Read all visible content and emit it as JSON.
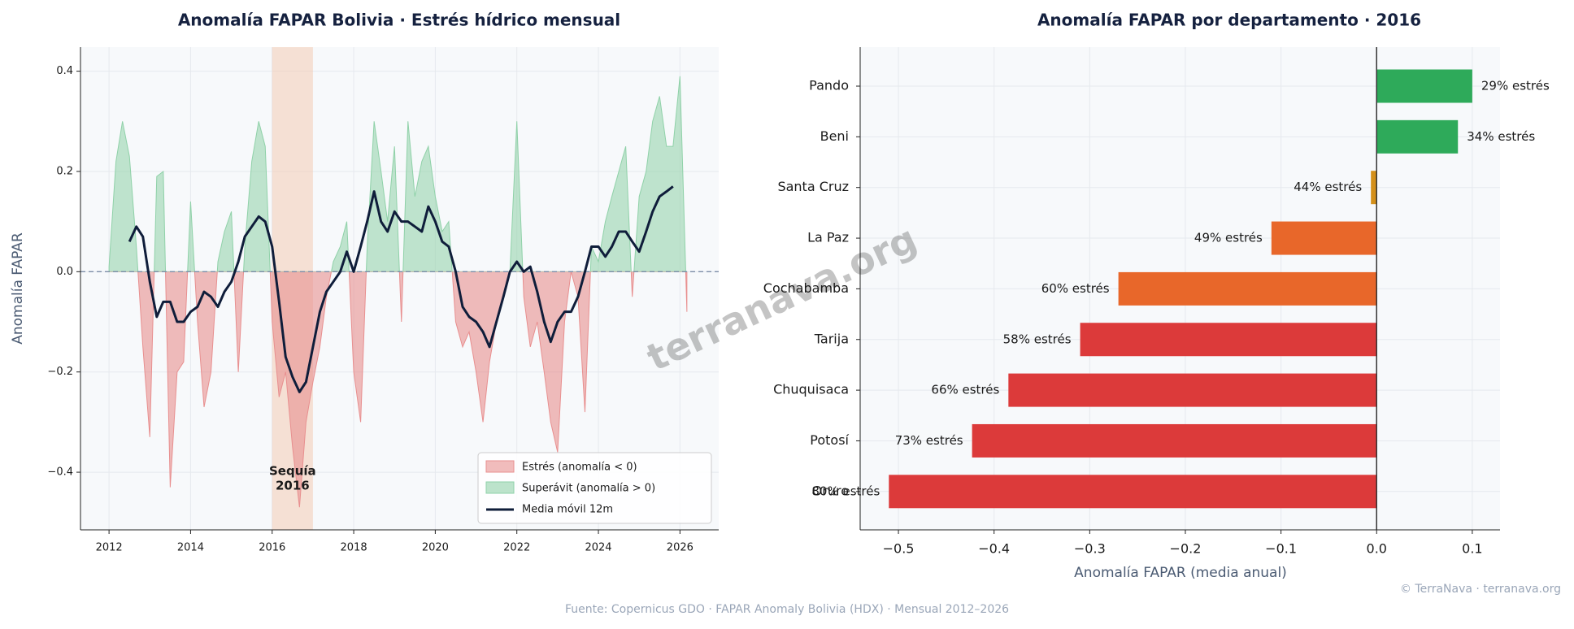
{
  "chart_data": [
    {
      "type": "area",
      "title": "Anomalía FAPAR Bolivia · Estrés hídrico mensual",
      "y_label": "Anomalía FAPAR",
      "x": [
        2012.0,
        2012.17,
        2012.33,
        2012.5,
        2012.67,
        2012.83,
        2013.0,
        2013.17,
        2013.33,
        2013.5,
        2013.67,
        2013.83,
        2014.0,
        2014.17,
        2014.33,
        2014.5,
        2014.67,
        2014.83,
        2015.0,
        2015.17,
        2015.33,
        2015.5,
        2015.67,
        2015.83,
        2016.0,
        2016.17,
        2016.33,
        2016.5,
        2016.67,
        2016.83,
        2017.0,
        2017.17,
        2017.33,
        2017.5,
        2017.67,
        2017.83,
        2018.0,
        2018.17,
        2018.33,
        2018.5,
        2018.67,
        2018.83,
        2019.0,
        2019.17,
        2019.33,
        2019.5,
        2019.67,
        2019.83,
        2020.0,
        2020.17,
        2020.33,
        2020.5,
        2020.67,
        2020.83,
        2021.0,
        2021.17,
        2021.33,
        2021.5,
        2021.67,
        2021.83,
        2022.0,
        2022.17,
        2022.33,
        2022.5,
        2022.67,
        2022.83,
        2023.0,
        2023.17,
        2023.33,
        2023.5,
        2023.67,
        2023.83,
        2024.0,
        2024.17,
        2024.33,
        2024.5,
        2024.67,
        2024.83,
        2025.0,
        2025.17,
        2025.33,
        2025.5,
        2025.67,
        2025.83,
        2026.0,
        2026.17
      ],
      "area": {
        "labels": [
          "Estrés (anomalía < 0)",
          "Superávit (anomalía > 0)"
        ],
        "colors": [
          "#e88f8f",
          "#8fd1a8"
        ],
        "values": [
          0.01,
          0.22,
          0.3,
          0.23,
          0.05,
          -0.15,
          -0.33,
          0.19,
          0.2,
          -0.43,
          -0.2,
          -0.18,
          0.14,
          -0.1,
          -0.27,
          -0.2,
          0.02,
          0.08,
          0.12,
          -0.2,
          0.05,
          0.22,
          0.3,
          0.25,
          -0.1,
          -0.25,
          -0.2,
          -0.35,
          -0.47,
          -0.3,
          -0.22,
          -0.15,
          -0.05,
          0.02,
          0.05,
          0.1,
          -0.2,
          -0.3,
          0.05,
          0.3,
          0.2,
          0.1,
          0.25,
          -0.1,
          0.3,
          0.15,
          0.22,
          0.25,
          0.15,
          0.08,
          0.1,
          -0.1,
          -0.15,
          -0.12,
          -0.2,
          -0.3,
          -0.18,
          -0.1,
          -0.05,
          0.0,
          0.3,
          -0.05,
          -0.15,
          -0.1,
          -0.2,
          -0.3,
          -0.36,
          -0.1,
          0.0,
          -0.05,
          -0.28,
          0.05,
          0.02,
          0.1,
          0.15,
          0.2,
          0.25,
          -0.05,
          0.15,
          0.2,
          0.3,
          0.35,
          0.25,
          0.25,
          0.39,
          -0.08
        ]
      },
      "series": [
        {
          "name": "Media móvil 12m",
          "color": "#0f1d3a",
          "values": [
            null,
            null,
            null,
            0.06,
            0.09,
            0.07,
            -0.02,
            -0.09,
            -0.06,
            -0.06,
            -0.1,
            -0.1,
            -0.08,
            -0.07,
            -0.04,
            -0.05,
            -0.07,
            -0.04,
            -0.02,
            0.02,
            0.07,
            0.09,
            0.11,
            0.1,
            0.05,
            -0.06,
            -0.17,
            -0.21,
            -0.24,
            -0.22,
            -0.15,
            -0.08,
            -0.04,
            -0.02,
            0.0,
            0.04,
            0.0,
            0.05,
            0.1,
            0.16,
            0.1,
            0.08,
            0.12,
            0.1,
            0.1,
            0.09,
            0.08,
            0.13,
            0.1,
            0.06,
            0.05,
            0.0,
            -0.07,
            -0.09,
            -0.1,
            -0.12,
            -0.15,
            -0.1,
            -0.05,
            0.0,
            0.02,
            0.0,
            0.01,
            -0.04,
            -0.1,
            -0.14,
            -0.1,
            -0.08,
            -0.08,
            -0.05,
            0.0,
            0.05,
            0.05,
            0.03,
            0.05,
            0.08,
            0.08,
            0.06,
            0.04,
            0.08,
            0.12,
            0.15,
            0.16,
            0.17,
            null,
            null
          ]
        }
      ],
      "highlight": {
        "xlim": [
          2016,
          2017
        ],
        "color": "#f4c7ad",
        "label_lines": [
          "Sequía",
          "2016"
        ],
        "label_color": "#e0601c"
      },
      "reference_line": 0,
      "xlim": [
        2011.3,
        2026.95
      ],
      "xticks": [
        2012,
        2014,
        2016,
        2018,
        2020,
        2022,
        2024,
        2026
      ],
      "ylim": [
        -0.515,
        0.448
      ],
      "yticks": [
        {
          "value": -0.4,
          "label": "−0.4"
        },
        {
          "value": -0.2,
          "label": "−0.2"
        },
        {
          "value": 0,
          "label": "0.0"
        },
        0.2,
        0.4
      ],
      "grid": true,
      "legend": "lower right"
    },
    {
      "type": "barh",
      "title": "Anomalía FAPAR por departamento · 2016",
      "x_label": "Anomalía FAPAR (media anual)",
      "categories": [
        "Pando",
        "Beni",
        "Santa Cruz",
        "La Paz",
        "Cochabamba",
        "Tarija",
        "Chuquisaca",
        "Potosí",
        "Oruro"
      ],
      "values": [
        0.1,
        0.085,
        -0.006,
        -0.11,
        -0.27,
        -0.31,
        -0.385,
        -0.423,
        -0.51
      ],
      "colors": [
        "#2eaa5a",
        "#2eaa5a",
        "#d4901a",
        "#e8672a",
        "#e8672a",
        "#dc3a3a",
        "#dc3a3a",
        "#dc3a3a",
        "#dc3a3a"
      ],
      "annotations": [
        "29% estrés",
        "34% estrés",
        "44% estrés",
        "49% estrés",
        "60% estrés",
        "58% estrés",
        "66% estrés",
        "73% estrés",
        "80% estrés"
      ],
      "xlim": [
        -0.54,
        0.129
      ],
      "xticks": [
        {
          "value": -0.5,
          "label": "−0.5"
        },
        {
          "value": -0.4,
          "label": "−0.4"
        },
        {
          "value": -0.3,
          "label": "−0.3"
        },
        {
          "value": -0.2,
          "label": "−0.2"
        },
        {
          "value": -0.1,
          "label": "−0.1"
        },
        {
          "value": 0,
          "label": "0.0"
        },
        0.1
      ],
      "grid": true
    }
  ],
  "page": {
    "source": "Fuente: Copernicus GDO · FAPAR Anomaly Bolivia (HDX) · Mensual 2012–2026",
    "credit": "© TerraNava · terranava.org",
    "watermark": "terranava.org"
  }
}
